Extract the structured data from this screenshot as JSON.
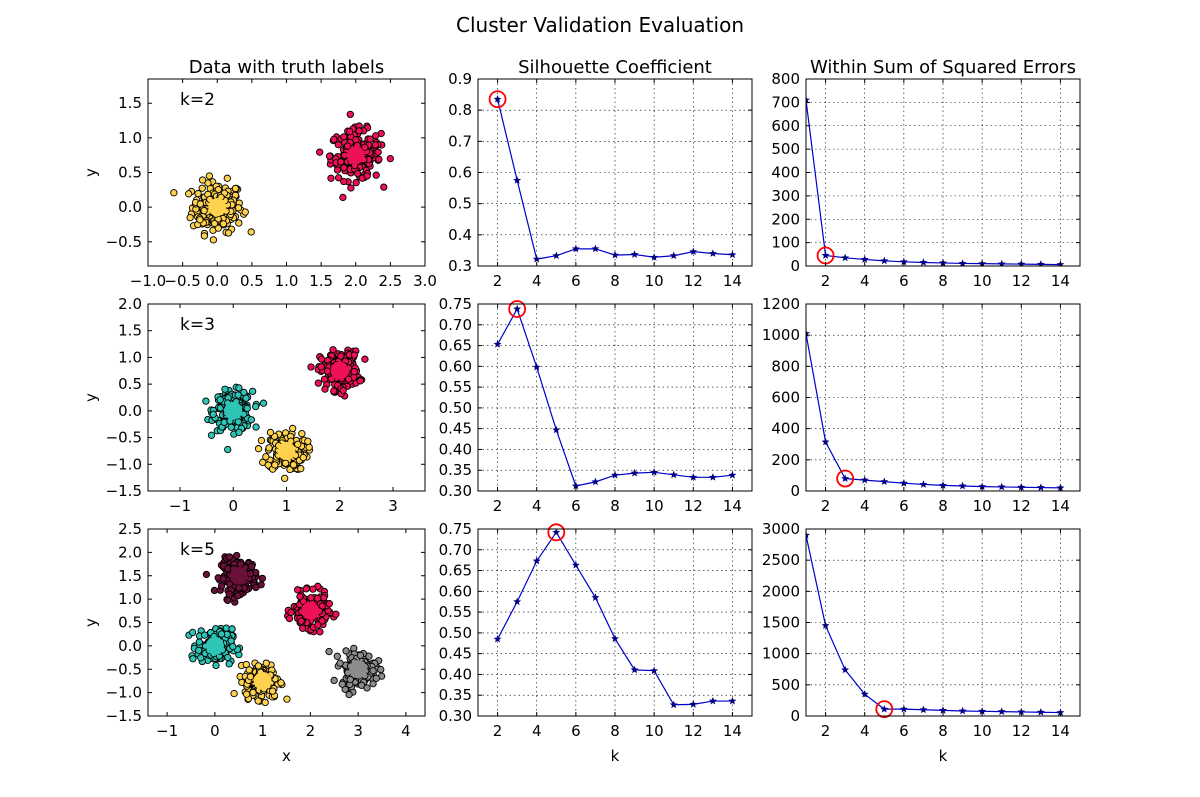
{
  "figure": {
    "title": "Cluster Validation Evaluation"
  },
  "chart_data": [
    {
      "type": "scatter",
      "title": "Data with truth labels",
      "annotation": "k=2",
      "xlabel": "",
      "ylabel": "y",
      "xlim": [
        -1.0,
        3.0
      ],
      "ylim": [
        -0.85,
        1.85
      ],
      "xticks": [
        -1.0,
        -0.5,
        0.0,
        0.5,
        1.0,
        1.5,
        2.0,
        2.5,
        3.0
      ],
      "xtick_labels": [
        "−1.0",
        "−0.5",
        "0.0",
        "0.5",
        "1.0",
        "1.5",
        "2.0",
        "2.5",
        "3.0"
      ],
      "yticks": [
        -0.5,
        0.0,
        0.5,
        1.0,
        1.5
      ],
      "ytick_labels": [
        "−0.5",
        "0.0",
        "0.5",
        "1.0",
        "1.5"
      ],
      "grid": false,
      "clusters": [
        {
          "center": [
            0.0,
            0.0
          ],
          "color": "#ffd24d",
          "spread": 0.18
        },
        {
          "center": [
            2.0,
            0.75
          ],
          "color": "#ee1155",
          "spread": 0.18
        }
      ]
    },
    {
      "type": "line",
      "title": "Silhouette Coefficient",
      "xlabel": "",
      "ylabel": "",
      "x": [
        2,
        3,
        4,
        5,
        6,
        7,
        8,
        9,
        10,
        11,
        12,
        13,
        14
      ],
      "y": [
        0.835,
        0.575,
        0.322,
        0.333,
        0.355,
        0.355,
        0.335,
        0.337,
        0.328,
        0.333,
        0.346,
        0.34,
        0.336
      ],
      "xlim": [
        1.0,
        15.0
      ],
      "ylim": [
        0.3,
        0.9
      ],
      "best_k": 2,
      "xticks": [
        2,
        4,
        6,
        8,
        10,
        12,
        14
      ],
      "xtick_labels": [
        "2",
        "4",
        "6",
        "8",
        "10",
        "12",
        "14"
      ],
      "yticks": [
        0.3,
        0.4,
        0.5,
        0.6,
        0.7,
        0.8,
        0.9
      ],
      "ytick_labels": [
        "0.3",
        "0.4",
        "0.5",
        "0.6",
        "0.7",
        "0.8",
        "0.9"
      ],
      "grid": true
    },
    {
      "type": "line",
      "title": "Within Sum of Squared Errors",
      "xlabel": "",
      "ylabel": "",
      "x": [
        1,
        2,
        3,
        4,
        5,
        6,
        7,
        8,
        9,
        10,
        11,
        12,
        13,
        14
      ],
      "y": [
        710,
        45,
        35,
        28,
        22,
        18,
        15,
        13,
        11,
        10,
        9,
        8,
        7,
        6
      ],
      "xlim": [
        1.0,
        15.0
      ],
      "ylim": [
        0,
        800
      ],
      "best_k": 2,
      "xticks": [
        2,
        4,
        6,
        8,
        10,
        12,
        14
      ],
      "xtick_labels": [
        "2",
        "4",
        "6",
        "8",
        "10",
        "12",
        "14"
      ],
      "yticks": [
        0,
        100,
        200,
        300,
        400,
        500,
        600,
        700,
        800
      ],
      "ytick_labels": [
        "0",
        "100",
        "200",
        "300",
        "400",
        "500",
        "600",
        "700",
        "800"
      ],
      "grid": true
    },
    {
      "type": "scatter",
      "title": "",
      "annotation": "k=3",
      "xlabel": "",
      "ylabel": "y",
      "xlim": [
        -1.6,
        3.6
      ],
      "ylim": [
        -1.5,
        2.0
      ],
      "xticks": [
        -1,
        0,
        1,
        2,
        3
      ],
      "xtick_labels": [
        "−1",
        "0",
        "1",
        "2",
        "3"
      ],
      "yticks": [
        -1.5,
        -1.0,
        -0.5,
        0.0,
        0.5,
        1.0,
        1.5,
        2.0
      ],
      "ytick_labels": [
        "−1.5",
        "−1.0",
        "−0.5",
        "0.0",
        "0.5",
        "1.0",
        "1.5",
        "2.0"
      ],
      "grid": false,
      "clusters": [
        {
          "center": [
            0.0,
            0.0
          ],
          "color": "#2ec4b6",
          "spread": 0.18
        },
        {
          "center": [
            1.0,
            -0.75
          ],
          "color": "#ffd24d",
          "spread": 0.18
        },
        {
          "center": [
            2.0,
            0.75
          ],
          "color": "#ee1155",
          "spread": 0.18
        }
      ]
    },
    {
      "type": "line",
      "title": "",
      "xlabel": "",
      "ylabel": "",
      "x": [
        2,
        3,
        4,
        5,
        6,
        7,
        8,
        9,
        10,
        11,
        12,
        13,
        14
      ],
      "y": [
        0.653,
        0.738,
        0.598,
        0.447,
        0.312,
        0.322,
        0.338,
        0.343,
        0.345,
        0.339,
        0.333,
        0.333,
        0.338
      ],
      "xlim": [
        1.0,
        15.0
      ],
      "ylim": [
        0.3,
        0.75
      ],
      "best_k": 3,
      "xticks": [
        2,
        4,
        6,
        8,
        10,
        12,
        14
      ],
      "xtick_labels": [
        "2",
        "4",
        "6",
        "8",
        "10",
        "12",
        "14"
      ],
      "yticks": [
        0.3,
        0.35,
        0.4,
        0.45,
        0.5,
        0.55,
        0.6,
        0.65,
        0.7,
        0.75
      ],
      "ytick_labels": [
        "0.30",
        "0.35",
        "0.40",
        "0.45",
        "0.50",
        "0.55",
        "0.60",
        "0.65",
        "0.70",
        "0.75"
      ],
      "grid": true
    },
    {
      "type": "line",
      "title": "",
      "xlabel": "",
      "ylabel": "",
      "x": [
        1,
        2,
        3,
        4,
        5,
        6,
        7,
        8,
        9,
        10,
        11,
        12,
        13,
        14
      ],
      "y": [
        1010,
        315,
        80,
        70,
        60,
        50,
        42,
        36,
        32,
        28,
        26,
        24,
        22,
        20
      ],
      "xlim": [
        1.0,
        15.0
      ],
      "ylim": [
        0,
        1200
      ],
      "best_k": 3,
      "xticks": [
        2,
        4,
        6,
        8,
        10,
        12,
        14
      ],
      "xtick_labels": [
        "2",
        "4",
        "6",
        "8",
        "10",
        "12",
        "14"
      ],
      "yticks": [
        0,
        200,
        400,
        600,
        800,
        1000,
        1200
      ],
      "ytick_labels": [
        "0",
        "200",
        "400",
        "600",
        "800",
        "1000",
        "1200"
      ],
      "grid": true
    },
    {
      "type": "scatter",
      "title": "",
      "annotation": "k=5",
      "xlabel": "x",
      "ylabel": "y",
      "xlim": [
        -1.4,
        4.4
      ],
      "ylim": [
        -1.5,
        2.5
      ],
      "xticks": [
        -1,
        0,
        1,
        2,
        3,
        4
      ],
      "xtick_labels": [
        "−1",
        "0",
        "1",
        "2",
        "3",
        "4"
      ],
      "yticks": [
        -1.5,
        -1.0,
        -0.5,
        0.0,
        0.5,
        1.0,
        1.5,
        2.0,
        2.5
      ],
      "ytick_labels": [
        "−1.5",
        "−1.0",
        "−0.5",
        "0.0",
        "0.5",
        "1.0",
        "1.5",
        "2.0",
        "2.5"
      ],
      "grid": false,
      "clusters": [
        {
          "center": [
            0.5,
            1.5
          ],
          "color": "#6b1038",
          "spread": 0.18
        },
        {
          "center": [
            2.0,
            0.75
          ],
          "color": "#ee1155",
          "spread": 0.18
        },
        {
          "center": [
            0.0,
            0.0
          ],
          "color": "#2ec4b6",
          "spread": 0.18
        },
        {
          "center": [
            1.0,
            -0.75
          ],
          "color": "#ffd24d",
          "spread": 0.18
        },
        {
          "center": [
            3.0,
            -0.5
          ],
          "color": "#8c8c8c",
          "spread": 0.18
        }
      ]
    },
    {
      "type": "line",
      "title": "",
      "xlabel": "k",
      "ylabel": "",
      "x": [
        2,
        3,
        4,
        5,
        6,
        7,
        8,
        9,
        10,
        11,
        12,
        13,
        14
      ],
      "y": [
        0.485,
        0.575,
        0.673,
        0.742,
        0.663,
        0.585,
        0.486,
        0.411,
        0.409,
        0.327,
        0.328,
        0.336,
        0.336
      ],
      "xlim": [
        1.0,
        15.0
      ],
      "ylim": [
        0.3,
        0.75
      ],
      "best_k": 5,
      "xticks": [
        2,
        4,
        6,
        8,
        10,
        12,
        14
      ],
      "xtick_labels": [
        "2",
        "4",
        "6",
        "8",
        "10",
        "12",
        "14"
      ],
      "yticks": [
        0.3,
        0.35,
        0.4,
        0.45,
        0.5,
        0.55,
        0.6,
        0.65,
        0.7,
        0.75
      ],
      "ytick_labels": [
        "0.30",
        "0.35",
        "0.40",
        "0.45",
        "0.50",
        "0.55",
        "0.60",
        "0.65",
        "0.70",
        "0.75"
      ],
      "grid": true
    },
    {
      "type": "line",
      "title": "",
      "xlabel": "k",
      "ylabel": "",
      "x": [
        1,
        2,
        3,
        4,
        5,
        6,
        7,
        8,
        9,
        10,
        11,
        12,
        13,
        14
      ],
      "y": [
        2900,
        1450,
        740,
        350,
        110,
        110,
        100,
        90,
        80,
        75,
        70,
        65,
        60,
        55
      ],
      "xlim": [
        1.0,
        15.0
      ],
      "ylim": [
        0,
        3000
      ],
      "best_k": 5,
      "xticks": [
        2,
        4,
        6,
        8,
        10,
        12,
        14
      ],
      "xtick_labels": [
        "2",
        "4",
        "6",
        "8",
        "10",
        "12",
        "14"
      ],
      "yticks": [
        0,
        500,
        1000,
        1500,
        2000,
        2500,
        3000
      ],
      "ytick_labels": [
        "0",
        "500",
        "1000",
        "1500",
        "2000",
        "2500",
        "3000"
      ],
      "grid": true
    }
  ]
}
